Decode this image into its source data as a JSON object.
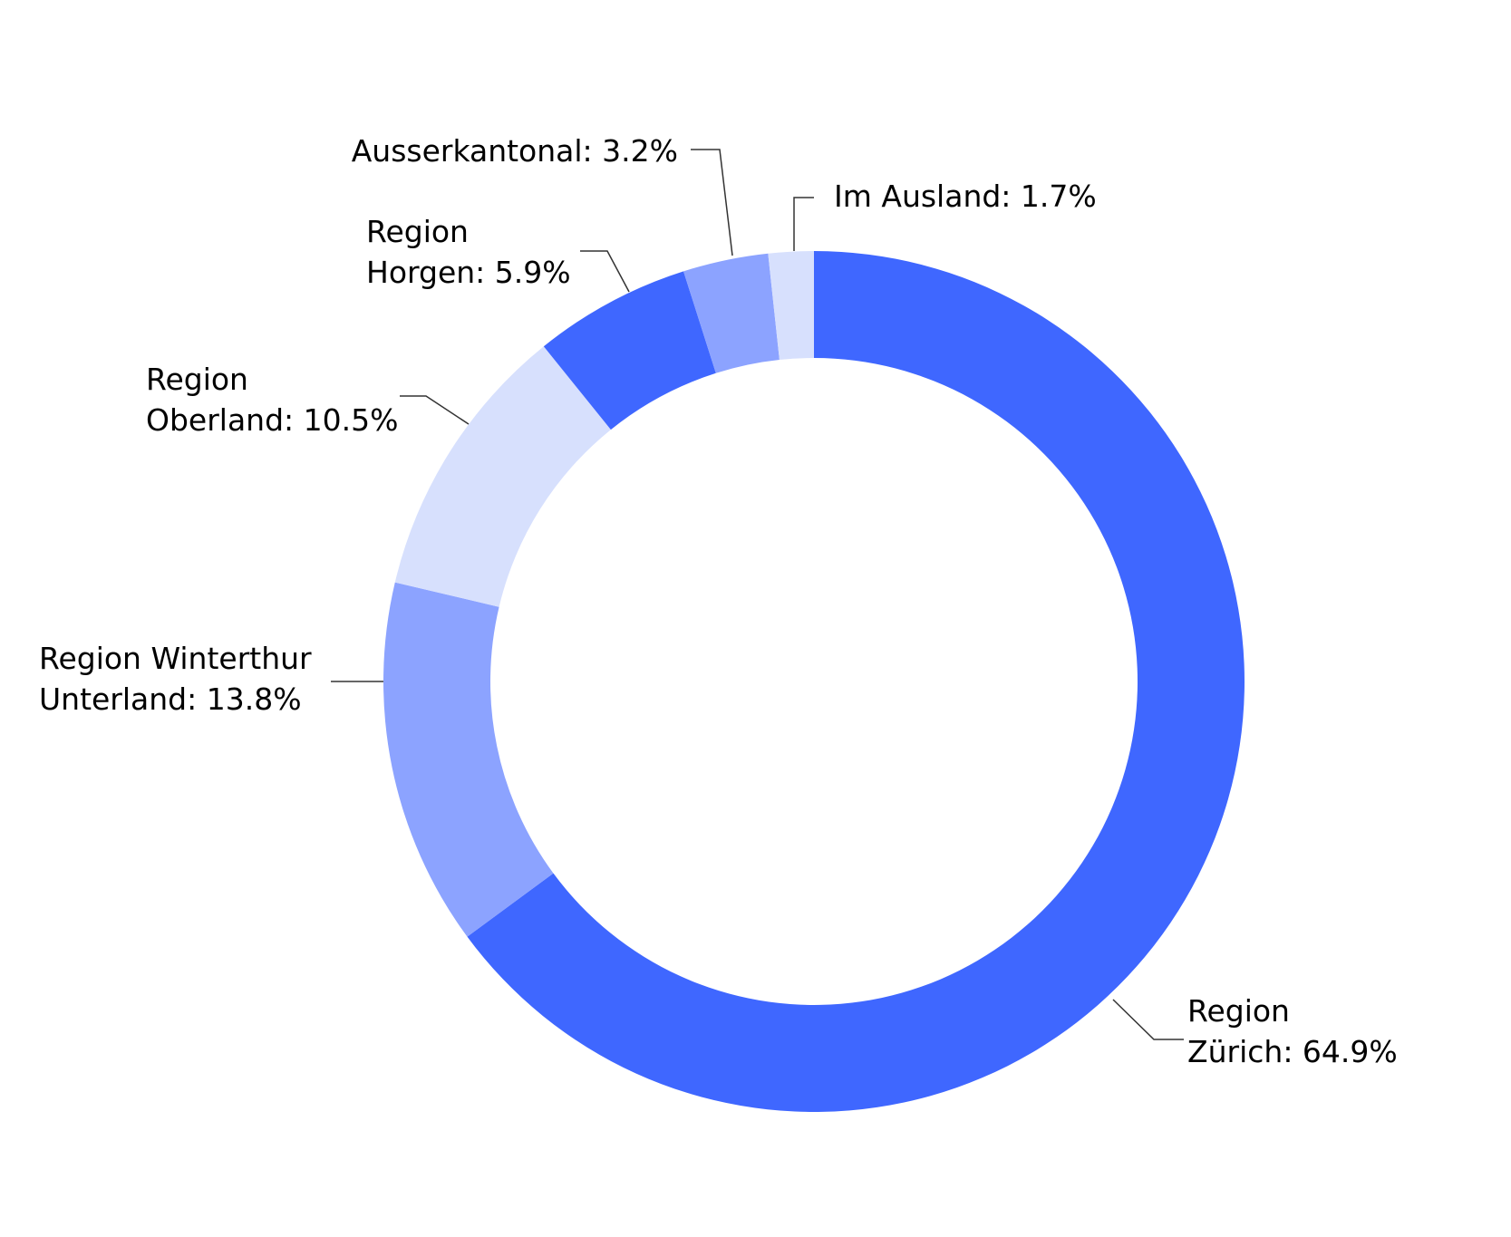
{
  "chart_data": {
    "type": "pie",
    "variant": "donut",
    "start_angle_deg": 0,
    "direction": "clockwise",
    "slices": [
      {
        "name": "Region Zürich",
        "label_lines": [
          "Region",
          "Zürich: 64.9%"
        ],
        "value": 64.9,
        "color": "#3f67ff"
      },
      {
        "name": "Region Winterthur Unterland",
        "label_lines": [
          "Region Winterthur",
          "Unterland: 13.8%"
        ],
        "value": 13.8,
        "color": "#8ca3ff"
      },
      {
        "name": "Region Oberland",
        "label_lines": [
          "Region",
          "Oberland: 10.5%"
        ],
        "value": 10.5,
        "color": "#d7e0fd"
      },
      {
        "name": "Region Horgen",
        "label_lines": [
          "Region",
          "Horgen: 5.9%"
        ],
        "value": 5.9,
        "color": "#3f67ff"
      },
      {
        "name": "Ausserkantonal",
        "label_lines": [
          "Ausserkantonal: 3.2%"
        ],
        "value": 3.2,
        "color": "#8ca3ff"
      },
      {
        "name": "Im Ausland",
        "label_lines": [
          "Im Ausland: 1.7%"
        ],
        "value": 1.7,
        "color": "#d7e0fd"
      }
    ],
    "legend": "none",
    "labels": "outside-with-leader-lines"
  }
}
